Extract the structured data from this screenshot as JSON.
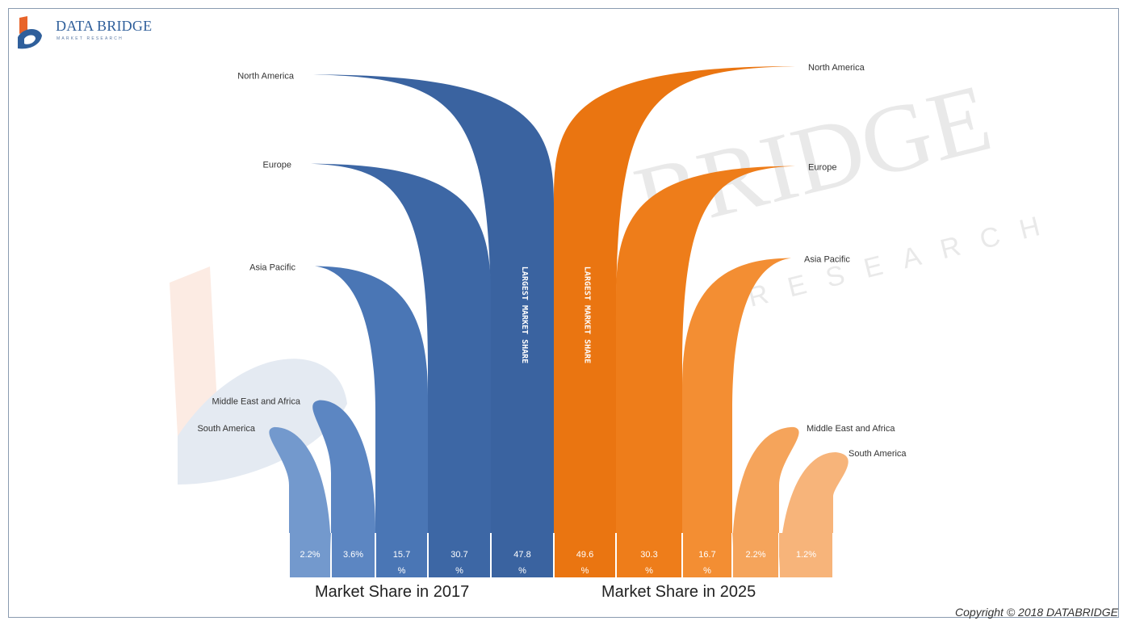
{
  "brand": {
    "name": "DATA BRIDGE",
    "tagline": "MARKET RESEARCH",
    "watermark_main": "BRIDGE",
    "watermark_sub": "RESEARCH",
    "copyright": "Copyright © 2018 DATABRIDGE"
  },
  "chart_data": {
    "type": "bar",
    "title": "",
    "categories": [
      "North America",
      "Europe",
      "Asia Pacific",
      "Middle East and Africa",
      "South America"
    ],
    "series": [
      {
        "name": "Market Share in 2017",
        "color": "#3a64a1",
        "values": [
          47.8,
          30.7,
          15.7,
          3.6,
          2.2
        ],
        "labels": [
          "47.8 %",
          "30.7 %",
          "15.7 %",
          "3.6%",
          "2.2%"
        ]
      },
      {
        "name": "Market Share in 2025",
        "color": "#ec7a12",
        "values": [
          49.6,
          30.3,
          16.7,
          2.2,
          1.2
        ],
        "labels": [
          "49.6 %",
          "30.3 %",
          "16.7 %",
          "2.2%",
          "1.2%"
        ]
      }
    ],
    "bar_annotation": "LARGEST MARKET SHARE"
  }
}
